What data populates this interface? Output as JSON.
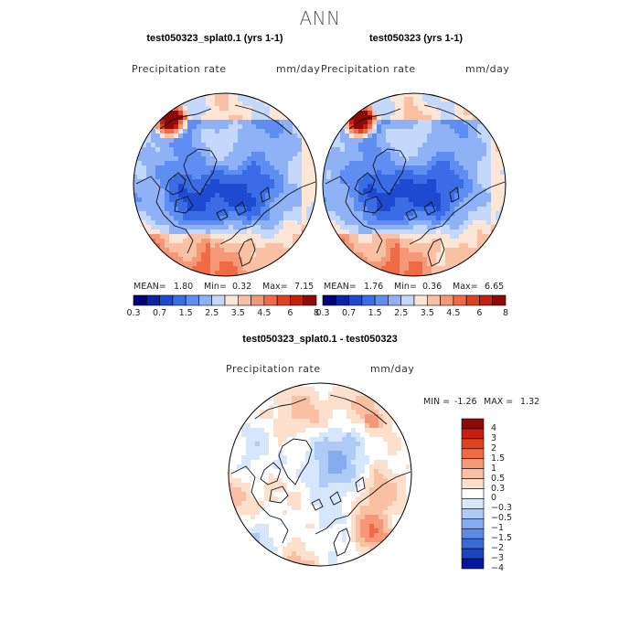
{
  "suptitle": "ANN",
  "chart_data": [
    {
      "type": "heatmap",
      "projection": "north-polar-stereographic",
      "title": "test050323_splat0.1 (yrs 1-1)",
      "variable": "Precipitation rate",
      "units": "mm/day",
      "stats": {
        "mean_label": "MEAN=",
        "mean": "1.80",
        "min_label": "Min=",
        "min": "0.32",
        "max_label": "Max=",
        "max": "7.15"
      },
      "contour_levels": [
        "0.3",
        "0.7",
        "1",
        "1.5",
        "2",
        "2.5",
        "3",
        "3.5",
        "4",
        "4.5",
        "5",
        "6",
        "7",
        "8"
      ],
      "colorbar_labels": [
        "0.3",
        "0.7",
        "1.5",
        "2.5",
        "3.5",
        "4.5",
        "6",
        "8"
      ],
      "colorbar_orientation": "horizontal"
    },
    {
      "type": "heatmap",
      "projection": "north-polar-stereographic",
      "title": "test050323 (yrs 1-1)",
      "variable": "Precipitation rate",
      "units": "mm/day",
      "stats": {
        "mean_label": "MEAN=",
        "mean": "1.76",
        "min_label": "Min=",
        "min": "0.36",
        "max_label": "Max=",
        "max": "6.65"
      },
      "contour_levels": [
        "0.3",
        "0.7",
        "1",
        "1.5",
        "2",
        "2.5",
        "3",
        "3.5",
        "4",
        "4.5",
        "5",
        "6",
        "7",
        "8"
      ],
      "colorbar_labels": [
        "0.3",
        "0.7",
        "1.5",
        "2.5",
        "3.5",
        "4.5",
        "6",
        "8"
      ],
      "colorbar_orientation": "horizontal"
    },
    {
      "type": "heatmap",
      "projection": "north-polar-stereographic",
      "title": "test050323_splat0.1 - test050323",
      "variable": "Precipitation rate",
      "units": "mm/day",
      "stats": {
        "min_label": "MIN =",
        "min": "-1.26",
        "max_label": "MAX =",
        "max": "1.32"
      },
      "colorbar_labels": [
        "4",
        "3",
        "2",
        "1.5",
        "1",
        "0.5",
        "0.3",
        "0",
        "−0.3",
        "−0.5",
        "−1",
        "−1.5",
        "−2",
        "−3",
        "−4"
      ],
      "colorbar_orientation": "vertical"
    }
  ],
  "palette": {
    "seq": [
      "#00007d",
      "#0a24a8",
      "#1d4ad0",
      "#3a6ce6",
      "#5f8ef2",
      "#8fb2f7",
      "#c3d8fb",
      "#fde6d6",
      "#f9c0a3",
      "#f59877",
      "#f06a45",
      "#e2411f",
      "#c51f10",
      "#8e0a06"
    ],
    "div": [
      "#8e0a06",
      "#c51f10",
      "#e2411f",
      "#f06a45",
      "#f59877",
      "#f9c0a3",
      "#fde0cc",
      "#ffffff",
      "#d6e6fb",
      "#aecbf7",
      "#86acf0",
      "#5c8ae6",
      "#3a6ad8",
      "#1c44bf",
      "#06169a"
    ]
  }
}
